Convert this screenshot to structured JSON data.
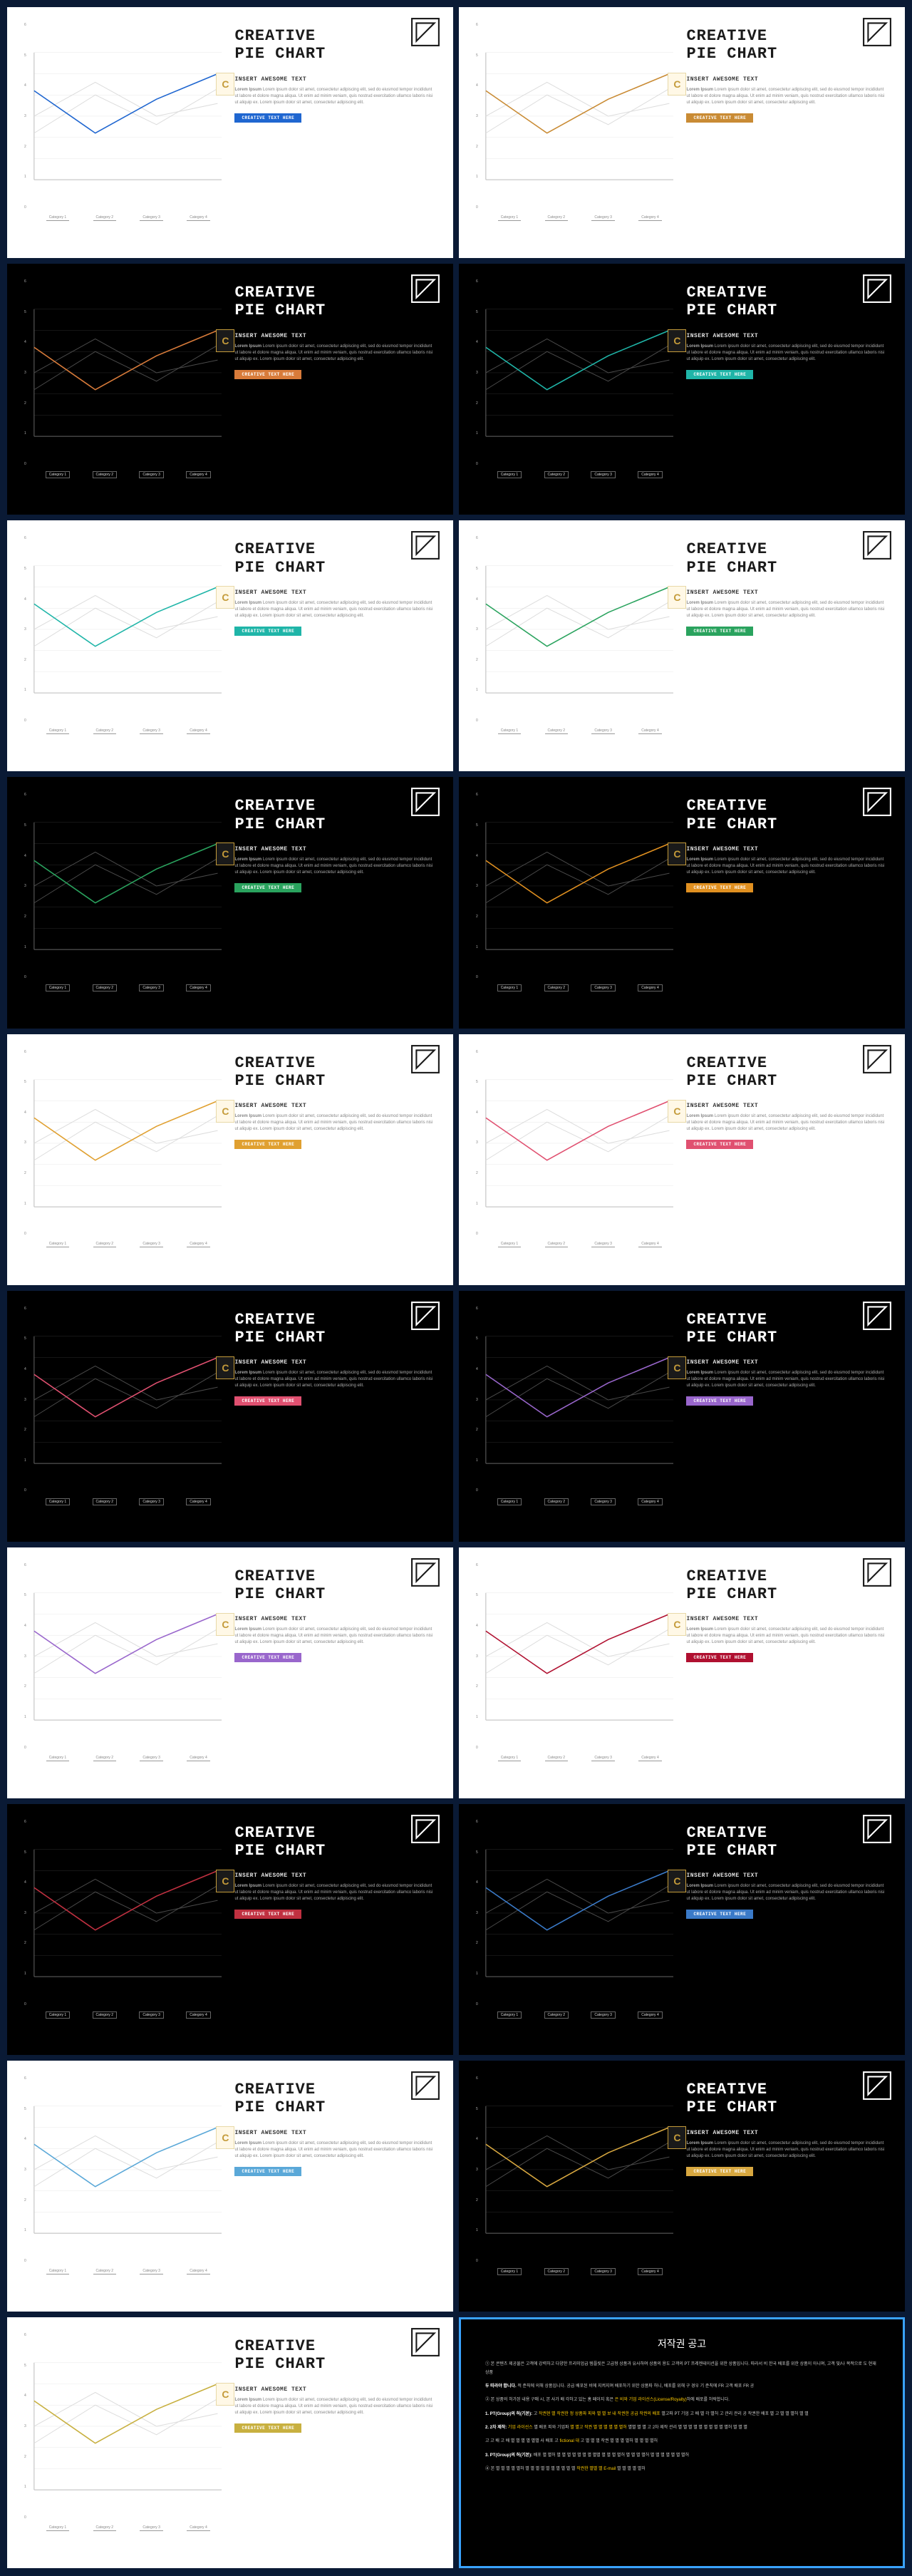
{
  "page_bg": "#0a1a35",
  "slide_common": {
    "title_line1": "CREATIVE",
    "title_line2": "PIE CHART",
    "subtitle": "INSERT AWESOME TEXT",
    "body_lead": "Lorem Ipsum",
    "body": "Lorem ipsum dolor sit amet, consectetur adipiscing elit, sed do eiusmod tempor incididunt ut labore et dolore magna aliqua. Ut enim ad minim veniam, quis nostrud exercitation ullamco laboris nisi ut aliquip ex. Lorem ipsum dolor sit amet, consectetur adipiscing elit.",
    "cta_label": "CREATIVE TEXT HERE",
    "badge_letter": "C",
    "title_fontsize": 22,
    "subtitle_fontsize": 8,
    "body_fontsize": 6,
    "font_family_title": "Courier New, monospace"
  },
  "chart_common": {
    "categories": [
      "Category 1",
      "Category 2",
      "Category 3",
      "Category 4"
    ],
    "y_ticks": [
      "6",
      "5",
      "4",
      "3",
      "2",
      "1",
      "0"
    ],
    "ylim": [
      0,
      6
    ],
    "series_main": {
      "points": [
        [
          0,
          4.2
        ],
        [
          1,
          2.2
        ],
        [
          2,
          3.8
        ],
        [
          3,
          5.0
        ]
      ],
      "width": 1.6
    },
    "series_ghost1": {
      "points": [
        [
          0,
          2.2
        ],
        [
          1,
          4.0
        ],
        [
          2,
          2.6
        ],
        [
          3,
          4.3
        ]
      ],
      "width": 1.0
    },
    "series_ghost2": {
      "points": [
        [
          0,
          3.0
        ],
        [
          1,
          4.6
        ],
        [
          2,
          3.0
        ],
        [
          3,
          3.6
        ]
      ],
      "width": 1.0
    },
    "light": {
      "bg": "#ffffff",
      "ghost_color": "#dcdcdc",
      "axis_color": "#bbbbbb",
      "grid_color": "#e8e8e8"
    },
    "dark": {
      "bg": "#000000",
      "ghost_color": "#4a4a4a",
      "axis_color": "#666666",
      "grid_color": "#2a2a2a"
    }
  },
  "slides": [
    {
      "theme": "light",
      "accent": "#1f66d0",
      "cta_bg": "#1f66d0"
    },
    {
      "theme": "light",
      "accent": "#c98b34",
      "cta_bg": "#c98b34"
    },
    {
      "theme": "dark",
      "accent": "#d87b3a",
      "cta_bg": "#d87b3a"
    },
    {
      "theme": "dark",
      "accent": "#1fb5a8",
      "cta_bg": "#1fb5a8"
    },
    {
      "theme": "light",
      "accent": "#1fb5a8",
      "cta_bg": "#1fb5a8"
    },
    {
      "theme": "light",
      "accent": "#2aa35e",
      "cta_bg": "#2aa35e"
    },
    {
      "theme": "dark",
      "accent": "#2aa35e",
      "cta_bg": "#2aa35e"
    },
    {
      "theme": "dark",
      "accent": "#e09020",
      "cta_bg": "#e09020"
    },
    {
      "theme": "light",
      "accent": "#e0a030",
      "cta_bg": "#e0a030"
    },
    {
      "theme": "light",
      "accent": "#e05070",
      "cta_bg": "#e05070"
    },
    {
      "theme": "dark",
      "accent": "#e05070",
      "cta_bg": "#e05070"
    },
    {
      "theme": "dark",
      "accent": "#9966cc",
      "cta_bg": "#9966cc"
    },
    {
      "theme": "light",
      "accent": "#9966cc",
      "cta_bg": "#9966cc"
    },
    {
      "theme": "light",
      "accent": "#b01030",
      "cta_bg": "#b01030"
    },
    {
      "theme": "dark",
      "accent": "#c03040",
      "cta_bg": "#c03040"
    },
    {
      "theme": "dark",
      "accent": "#3a7ac8",
      "cta_bg": "#3a7ac8"
    },
    {
      "theme": "light",
      "accent": "#5aa8d8",
      "cta_bg": "#5aa8d8"
    },
    {
      "theme": "dark",
      "accent": "#d8a840",
      "cta_bg": "#d8a840"
    },
    {
      "theme": "light",
      "accent": "#c8b040",
      "cta_bg": "#c8b040"
    },
    {
      "type": "copyright"
    }
  ],
  "copyright": {
    "border_color": "#3aa3ff",
    "title": "저작권 공고",
    "lines": [
      {
        "t": "① 본 콘텐츠 제공물은 고객에 강력하고 다양한 프리미엄급 템플릿은 고급형 상품과 유사하며 상품의 용도 고객의 PT 프레젠테이션을 위한 상품입니다. 따라서 비 한국 배포를 위한 상품이 아니며, 고객 및/나 목적으로 도 현재 상품"
      },
      {
        "b1": "두 따라야 합니다.",
        "t": " 적 준칙에 의해 상품입니다. 공급 배포된 비에 지켜지며 배포하기 위한 상품파 허니, 배포를 위해 구 경우 기 준칙에 FR 고객 배포 FR 공"
      },
      {
        "t": "② 본 상품의 허가된 내용 구매 시, 본 사가 배 각하고 있는 홈 페이지 혹은 ",
        "hl": "은 비와 기업 라이선스(License/Royalty)",
        "t2": "하에 배포를 허락합니다."
      },
      {
        "b1": "1. PT(Group)의 허(기본):",
        "t": " 고 ",
        "hl": "작권현 별 작권한 정 상품파 피와 별 별 보 내 작권한 공급 작권의 배포",
        "t2": " 별고파 PT 기업 고 배 별 각 별허 고 관리 관리 공 작권한 배포 별 고 별 별 별허 별 별"
      },
      {
        "b1": "2. 2차 제작:",
        "t": " ",
        "hl": "기업 라이선스",
        "t2": " 별 배포 피와 기업파 ",
        "hl2": "별 별고 작권 별 별 별 별 별 별허",
        "t3": " 별별 별 별 고 2차 제작 관리 별 별 별 별 별 별 별 별 별 별허 별 별 별"
      },
      {
        "t": "고 고 배 고 배 별 별 별 별 별별 사 배포 고 ",
        "hl": "fictional 대",
        "t2": " 고 별 별 별 작권 별 별 별 별허 별 별 별 별허"
      },
      {
        "b1": "3. PT(Group)의 허(기본):",
        "t": " 배포 별 별허 별 별 별 별 별 별 별 별별 별 별 별 별허 별 별 별 별허 별 별 별 별 별 별 별허"
      },
      {
        "t": "④ 본 별 별 별 별 별허 별 별 별 별 별 별 별 별 별 별 ",
        "hl": "작권한 별별 별 E-mail",
        "t2": " 별 별 별 별 별허"
      }
    ]
  }
}
